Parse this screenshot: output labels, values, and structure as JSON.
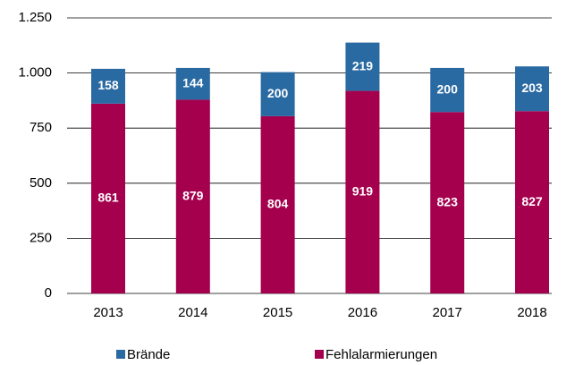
{
  "chart_data": {
    "type": "stacked_bar",
    "categories": [
      "2013",
      "2014",
      "2015",
      "2016",
      "2017",
      "2018"
    ],
    "series": [
      {
        "name": "Brände",
        "color": "#2a6aa3",
        "values": [
          158,
          144,
          200,
          219,
          200,
          203
        ]
      },
      {
        "name": "Fehlalarmierungen",
        "color": "#a4004e",
        "values": [
          861,
          879,
          804,
          919,
          823,
          827
        ]
      }
    ],
    "ylim": [
      0,
      1250
    ],
    "yticks": [
      0,
      250,
      500,
      750,
      {
        "value": 1000,
        "label": "1.000"
      },
      {
        "value": 1250,
        "label": "1.250"
      }
    ],
    "grid": true,
    "legend": "bottom"
  }
}
